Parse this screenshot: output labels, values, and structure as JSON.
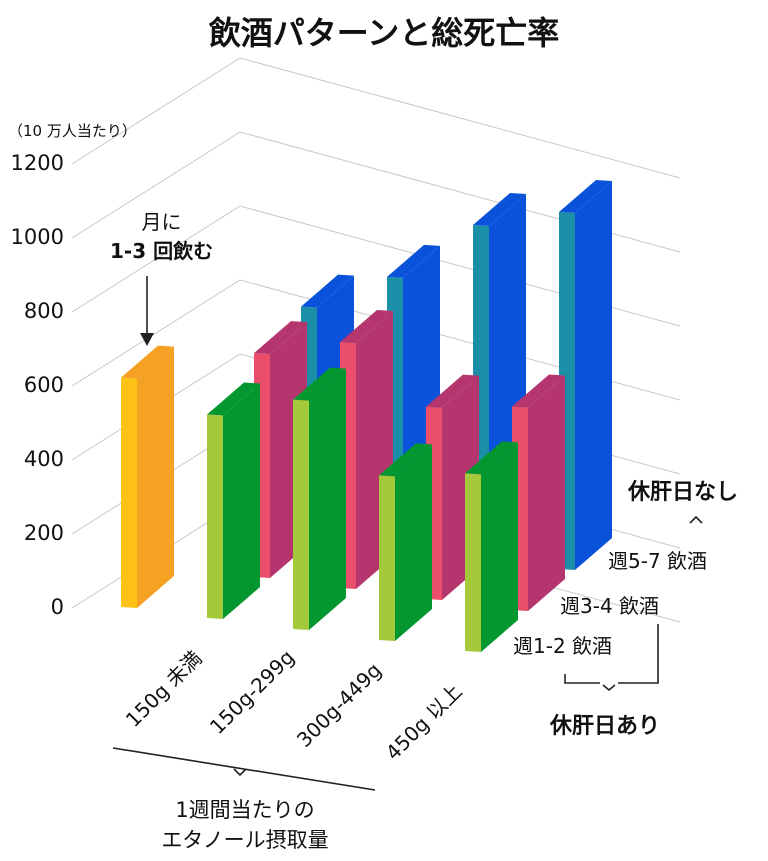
{
  "chart_data": {
    "type": "bar",
    "subtype": "3d-grouped",
    "title": "飲酒パターンと総死亡率",
    "ylabel": "（10 万人当たり）",
    "ylim": [
      0,
      1200
    ],
    "yticks": [
      "0",
      "200",
      "400",
      "600",
      "800",
      "1000",
      "1200"
    ],
    "categories": [
      "150g 未満",
      "150g-299g",
      "300g-449g",
      "450g 以上"
    ],
    "xlabel_lines": [
      "1週間当たりの",
      "エタノール摂取量"
    ],
    "reference": {
      "name": "月に 1-3 回飲む",
      "label_lines": [
        "月に",
        "1-3 回飲む"
      ],
      "value": 620,
      "colors": {
        "front": "#fdc215",
        "side": "#f5a123"
      }
    },
    "series": [
      {
        "name": "週1-2 飲酒",
        "values": [
          550,
          620,
          445,
          480
        ],
        "colors": {
          "front": "#a4c93a",
          "side": "#05972f"
        }
      },
      {
        "name": "週3-4 飲酒",
        "values": [
          605,
          665,
          520,
          550
        ],
        "colors": {
          "front": "#ea4e6b",
          "side": "#b5356f"
        }
      },
      {
        "name": "週5-7 飲酒",
        "values": [
          620,
          730,
          900,
          965
        ],
        "colors": {
          "front": "#1b8fa8",
          "side": "#0a52d9"
        }
      }
    ],
    "group_labels": {
      "no_rest_day": "休肝日なし",
      "rest_day": "休肝日あり"
    },
    "grid": true
  }
}
